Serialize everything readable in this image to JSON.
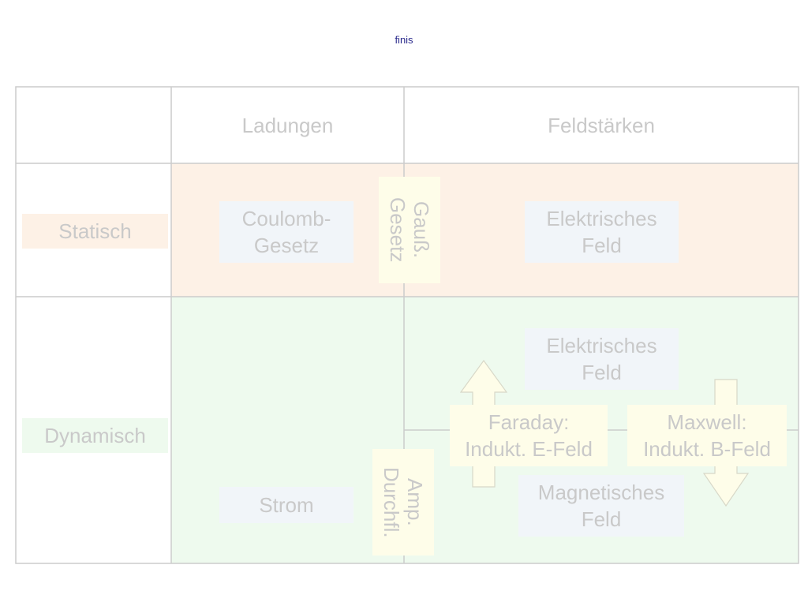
{
  "title": "finis",
  "columns": {
    "charges": "Ladungen",
    "field_strengths": "Feldstärken"
  },
  "rows": {
    "static": "Statisch",
    "dynamic": "Dynamisch"
  },
  "cells": {
    "coulomb": "Coulomb-\nGesetz",
    "electric_field_static": "Elektrisches\nFeld",
    "gauss": "Gauß.\nGesetz",
    "electric_field_dynamic": "Elektrisches\nFeld",
    "faraday": "Faraday:\nIndukt. E-Feld",
    "maxwell": "Maxwell:\nIndukt. B-Feld",
    "magnetic_field": "Magnetisches\nFeld",
    "current": "Strom",
    "ampere": "Amp.\nDurchfl."
  },
  "colors": {
    "grid_line": "#cccccc",
    "static_fill": "#fdf1e6",
    "dynamic_fill": "#eefaee",
    "box_blue": "#f1f5f9",
    "box_yellow": "#fefde9",
    "label_text": "#c9c9c9",
    "title_text": "#2a2a8c"
  }
}
